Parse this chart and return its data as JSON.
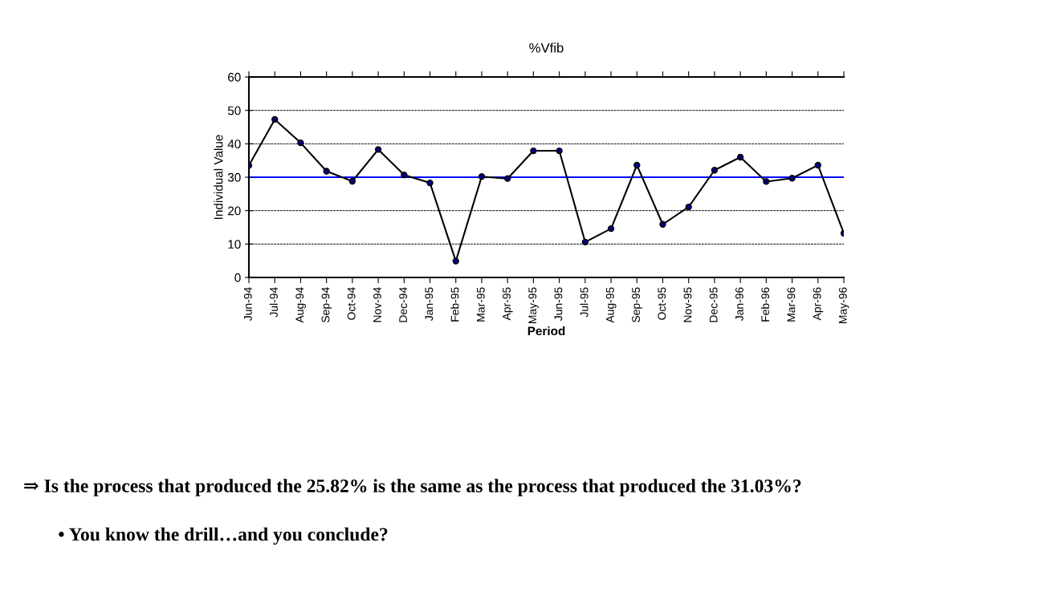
{
  "chart_data": {
    "type": "line",
    "title": "%Vfib",
    "xlabel": "Period",
    "ylabel": "Individual Value",
    "categories": [
      "Jun-94",
      "Jul-94",
      "Aug-94",
      "Sep-94",
      "Oct-94",
      "Nov-94",
      "Dec-94",
      "Jan-95",
      "Feb-95",
      "Mar-95",
      "Apr-95",
      "May-95",
      "Jun-95",
      "Jul-95",
      "Aug-95",
      "Sep-95",
      "Oct-95",
      "Nov-95",
      "Dec-95",
      "Jan-96",
      "Feb-96",
      "Mar-96",
      "Apr-96",
      "May-96"
    ],
    "series": [
      {
        "color": "#000000",
        "values": [
          33.5,
          47.3,
          40.3,
          31.8,
          28.8,
          38.3,
          30.7,
          28.3,
          4.9,
          30.2,
          29.6,
          37.9,
          37.9,
          10.6,
          14.6,
          33.6,
          15.9,
          21.1,
          32.1,
          36.0,
          28.7,
          29.7,
          33.6,
          13.2
        ]
      }
    ],
    "ylim": [
      0,
      60
    ],
    "yticks": [
      0,
      10,
      20,
      30,
      40,
      50,
      60
    ],
    "grid": "y",
    "marker": "circle",
    "line_style": "solid",
    "ref_lines": [
      {
        "axis": "y",
        "value": 30,
        "color": "#0000ff"
      }
    ],
    "annotations": [
      "⇒ Is the process that produced the 25.82% is the same as the process that produced the 31.03%?",
      "• You know the drill…and you conclude?"
    ]
  }
}
